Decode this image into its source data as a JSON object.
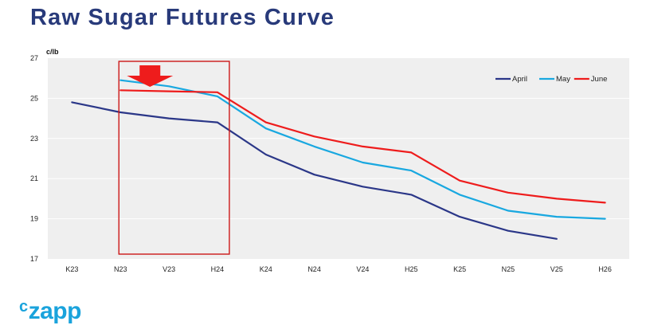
{
  "header": {
    "title": "Raw Sugar Futures Curve"
  },
  "logo": {
    "mark": "c",
    "text": "zapp"
  },
  "colors": {
    "title": "#283a7a",
    "plot_background": "#efefef",
    "gridline": "#ffffff",
    "highlight": "#cc1818",
    "logo": "#1aa3dc"
  },
  "chart_data": {
    "type": "line",
    "title": "",
    "xlabel": "",
    "ylabel": "c/lb",
    "categories": [
      "K23",
      "N23",
      "V23",
      "H24",
      "K24",
      "N24",
      "V24",
      "H25",
      "K25",
      "N25",
      "V25",
      "H26"
    ],
    "ylim": [
      17,
      27
    ],
    "yticks": [
      17,
      19,
      21,
      23,
      25,
      27
    ],
    "grid": true,
    "legend_position": "top-right",
    "series": [
      {
        "name": "April",
        "color": "#2b3788",
        "values": [
          24.8,
          24.3,
          24.0,
          23.8,
          22.2,
          21.2,
          20.6,
          20.2,
          19.1,
          18.4,
          18.0,
          null
        ]
      },
      {
        "name": "May",
        "color": "#19a8e0",
        "values": [
          null,
          25.9,
          25.6,
          25.1,
          23.5,
          22.6,
          21.8,
          21.4,
          20.2,
          19.4,
          19.1,
          19.0
        ]
      },
      {
        "name": "June",
        "color": "#ee1c1c",
        "values": [
          null,
          25.4,
          25.35,
          25.3,
          23.8,
          23.1,
          22.6,
          22.3,
          20.9,
          20.3,
          20.0,
          19.8
        ]
      }
    ],
    "annotations": [
      {
        "type": "highlight-box",
        "from": "N23",
        "to": "H24",
        "color": "#cc1818"
      },
      {
        "type": "arrow-down",
        "at": "N23",
        "color": "#ee1c1c"
      }
    ]
  }
}
